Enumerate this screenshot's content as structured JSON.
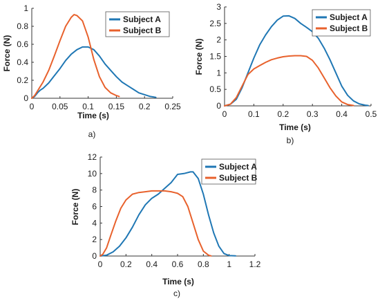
{
  "chart_data": [
    {
      "type": "line",
      "panel_label": "a)",
      "xlabel": "Time (s)",
      "ylabel": "Force (N)",
      "xlim": [
        0,
        0.25
      ],
      "ylim": [
        0,
        1
      ],
      "xticks": [
        0,
        0.05,
        0.1,
        0.15,
        0.2,
        0.25
      ],
      "xtick_labels": [
        "0",
        "0.05",
        "0.1",
        "0.15",
        "0.2",
        "0.25"
      ],
      "yticks": [
        0,
        0.2,
        0.4,
        0.6,
        0.8,
        1
      ],
      "ytick_labels": [
        "0",
        "0.2",
        "0.4",
        "0.6",
        "0.8",
        "1"
      ],
      "grid": false,
      "legend_position": "top-right",
      "series": [
        {
          "name": "Subject A",
          "color": "#1f77b4",
          "points": [
            [
              0,
              0
            ],
            [
              0.005,
              0.02
            ],
            [
              0.01,
              0.06
            ],
            [
              0.015,
              0.09
            ],
            [
              0.02,
              0.11
            ],
            [
              0.03,
              0.17
            ],
            [
              0.04,
              0.25
            ],
            [
              0.05,
              0.33
            ],
            [
              0.06,
              0.42
            ],
            [
              0.07,
              0.49
            ],
            [
              0.08,
              0.54
            ],
            [
              0.09,
              0.57
            ],
            [
              0.1,
              0.57
            ],
            [
              0.11,
              0.54
            ],
            [
              0.12,
              0.47
            ],
            [
              0.13,
              0.38
            ],
            [
              0.14,
              0.31
            ],
            [
              0.15,
              0.24
            ],
            [
              0.16,
              0.18
            ],
            [
              0.17,
              0.14
            ],
            [
              0.18,
              0.1
            ],
            [
              0.19,
              0.06
            ],
            [
              0.2,
              0.04
            ],
            [
              0.21,
              0.02
            ],
            [
              0.22,
              0.01
            ]
          ]
        },
        {
          "name": "Subject B",
          "color": "#e8612c",
          "points": [
            [
              0,
              0
            ],
            [
              0.005,
              0.03
            ],
            [
              0.01,
              0.08
            ],
            [
              0.02,
              0.18
            ],
            [
              0.03,
              0.31
            ],
            [
              0.04,
              0.47
            ],
            [
              0.05,
              0.64
            ],
            [
              0.06,
              0.8
            ],
            [
              0.07,
              0.9
            ],
            [
              0.075,
              0.93
            ],
            [
              0.08,
              0.92
            ],
            [
              0.09,
              0.86
            ],
            [
              0.1,
              0.68
            ],
            [
              0.11,
              0.43
            ],
            [
              0.12,
              0.24
            ],
            [
              0.13,
              0.12
            ],
            [
              0.14,
              0.06
            ],
            [
              0.15,
              0.03
            ],
            [
              0.155,
              0.02
            ]
          ]
        }
      ]
    },
    {
      "type": "line",
      "panel_label": "b)",
      "xlabel": "Time (s)",
      "ylabel": "Force (N)",
      "xlim": [
        0,
        0.5
      ],
      "ylim": [
        0,
        3
      ],
      "xticks": [
        0,
        0.1,
        0.2,
        0.3,
        0.4,
        0.5
      ],
      "xtick_labels": [
        "0",
        "0.1",
        "0.2",
        "0.3",
        "0.4",
        "0.5"
      ],
      "yticks": [
        0,
        0.5,
        1,
        1.5,
        2,
        2.5,
        3
      ],
      "ytick_labels": [
        "0",
        "0.5",
        "1",
        "1.5",
        "2",
        "2.5",
        "3"
      ],
      "grid": false,
      "legend_position": "top-right",
      "series": [
        {
          "name": "Subject A",
          "color": "#1f77b4",
          "points": [
            [
              0,
              0
            ],
            [
              0.02,
              0.05
            ],
            [
              0.04,
              0.2
            ],
            [
              0.06,
              0.55
            ],
            [
              0.08,
              1.0
            ],
            [
              0.1,
              1.45
            ],
            [
              0.12,
              1.85
            ],
            [
              0.14,
              2.15
            ],
            [
              0.16,
              2.4
            ],
            [
              0.18,
              2.6
            ],
            [
              0.2,
              2.72
            ],
            [
              0.22,
              2.73
            ],
            [
              0.24,
              2.65
            ],
            [
              0.26,
              2.5
            ],
            [
              0.28,
              2.38
            ],
            [
              0.3,
              2.25
            ],
            [
              0.32,
              2.05
            ],
            [
              0.34,
              1.75
            ],
            [
              0.36,
              1.4
            ],
            [
              0.38,
              1.0
            ],
            [
              0.4,
              0.6
            ],
            [
              0.42,
              0.32
            ],
            [
              0.44,
              0.15
            ],
            [
              0.46,
              0.06
            ],
            [
              0.48,
              0.02
            ],
            [
              0.49,
              0.01
            ]
          ]
        },
        {
          "name": "Subject B",
          "color": "#e8612c",
          "points": [
            [
              0,
              0
            ],
            [
              0.02,
              0.05
            ],
            [
              0.04,
              0.25
            ],
            [
              0.06,
              0.6
            ],
            [
              0.08,
              0.95
            ],
            [
              0.1,
              1.12
            ],
            [
              0.12,
              1.22
            ],
            [
              0.14,
              1.32
            ],
            [
              0.16,
              1.4
            ],
            [
              0.18,
              1.45
            ],
            [
              0.2,
              1.49
            ],
            [
              0.22,
              1.51
            ],
            [
              0.24,
              1.52
            ],
            [
              0.26,
              1.52
            ],
            [
              0.28,
              1.5
            ],
            [
              0.3,
              1.38
            ],
            [
              0.32,
              1.15
            ],
            [
              0.34,
              0.85
            ],
            [
              0.36,
              0.55
            ],
            [
              0.38,
              0.3
            ],
            [
              0.4,
              0.12
            ],
            [
              0.42,
              0.04
            ],
            [
              0.44,
              0.01
            ]
          ]
        }
      ]
    },
    {
      "type": "line",
      "panel_label": "c)",
      "xlabel": "Time (s)",
      "ylabel": "Force (N)",
      "xlim": [
        0,
        1.2
      ],
      "ylim": [
        0,
        12
      ],
      "xticks": [
        0,
        0.2,
        0.4,
        0.6,
        0.8,
        1,
        1.2
      ],
      "xtick_labels": [
        "0",
        "0.2",
        "0.4",
        "0.6",
        "0.8",
        "1",
        "1.2"
      ],
      "yticks": [
        0,
        2,
        4,
        6,
        8,
        10,
        12
      ],
      "ytick_labels": [
        "0",
        "2",
        "4",
        "6",
        "8",
        "10",
        "12"
      ],
      "grid": false,
      "legend_position": "top-right",
      "series": [
        {
          "name": "Subject A",
          "color": "#1f77b4",
          "points": [
            [
              0,
              0
            ],
            [
              0.05,
              0.1
            ],
            [
              0.1,
              0.5
            ],
            [
              0.15,
              1.2
            ],
            [
              0.2,
              2.2
            ],
            [
              0.25,
              3.5
            ],
            [
              0.3,
              5.0
            ],
            [
              0.35,
              6.2
            ],
            [
              0.4,
              7.0
            ],
            [
              0.45,
              7.5
            ],
            [
              0.5,
              8.2
            ],
            [
              0.55,
              8.9
            ],
            [
              0.6,
              9.9
            ],
            [
              0.65,
              10.0
            ],
            [
              0.7,
              10.2
            ],
            [
              0.72,
              10.2
            ],
            [
              0.76,
              9.4
            ],
            [
              0.8,
              7.5
            ],
            [
              0.84,
              5.0
            ],
            [
              0.88,
              2.8
            ],
            [
              0.92,
              1.2
            ],
            [
              0.96,
              0.3
            ],
            [
              1.0,
              0.05
            ],
            [
              1.05,
              0.02
            ]
          ]
        },
        {
          "name": "Subject B",
          "color": "#e8612c",
          "points": [
            [
              0,
              0
            ],
            [
              0.02,
              0.2
            ],
            [
              0.05,
              1.0
            ],
            [
              0.08,
              2.4
            ],
            [
              0.12,
              4.2
            ],
            [
              0.16,
              5.8
            ],
            [
              0.2,
              6.8
            ],
            [
              0.25,
              7.5
            ],
            [
              0.3,
              7.7
            ],
            [
              0.35,
              7.8
            ],
            [
              0.4,
              7.9
            ],
            [
              0.45,
              7.9
            ],
            [
              0.5,
              7.9
            ],
            [
              0.55,
              7.8
            ],
            [
              0.6,
              7.6
            ],
            [
              0.64,
              7.2
            ],
            [
              0.68,
              6.0
            ],
            [
              0.72,
              4.0
            ],
            [
              0.76,
              2.0
            ],
            [
              0.8,
              0.6
            ],
            [
              0.84,
              0.1
            ],
            [
              0.86,
              0.02
            ]
          ]
        }
      ]
    }
  ]
}
